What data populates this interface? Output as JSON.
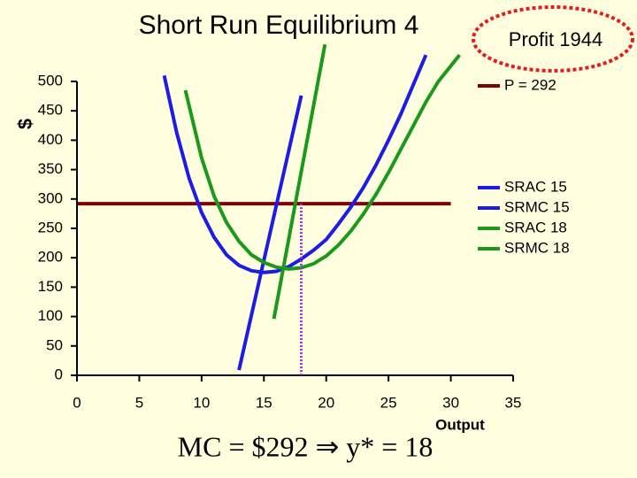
{
  "chart_data": {
    "type": "line",
    "title": "Short Run Equilibrium 4",
    "annotation": "Profit 1944",
    "footer": "MC = $292 ⇒ y* = 18",
    "x_label": "Output",
    "y_label": "$",
    "xlim": [
      0,
      35
    ],
    "xticks": [
      0,
      5,
      10,
      15,
      20,
      25,
      30,
      35
    ],
    "ylim": [
      0,
      500
    ],
    "yticks": [
      0,
      50,
      100,
      150,
      200,
      250,
      300,
      350,
      400,
      450,
      500
    ],
    "series": [
      {
        "name": "P = 292",
        "color": "#800000",
        "x": [
          0,
          30
        ],
        "values": [
          292,
          292
        ]
      },
      {
        "name": "SRAC 15",
        "color": "#1c1ce6",
        "x": [
          7,
          8,
          9,
          10,
          11,
          12,
          13,
          14,
          15,
          16,
          17,
          18,
          19,
          20,
          21,
          22,
          23,
          24,
          25,
          26,
          27,
          28
        ],
        "values": [
          510,
          413,
          335,
          277,
          235,
          205,
          187,
          178,
          175,
          177,
          185,
          198,
          213,
          231,
          258,
          287,
          320,
          358,
          400,
          445,
          495,
          545
        ]
      },
      {
        "name": "SRMC 15",
        "color": "#1c1ce6",
        "x": [
          13,
          18
        ],
        "values": [
          9,
          476
        ]
      },
      {
        "name": "SRAC 18",
        "color": "#1a991a",
        "x": [
          8.7,
          10,
          11,
          12,
          13,
          14,
          15,
          16,
          17,
          18,
          19,
          20,
          21,
          22,
          23,
          24,
          25,
          26,
          27,
          28,
          29,
          30.7
        ],
        "values": [
          485,
          370,
          305,
          260,
          228,
          205,
          192,
          184,
          181,
          183,
          190,
          203,
          222,
          246,
          275,
          308,
          345,
          385,
          425,
          465,
          500,
          545
        ]
      },
      {
        "name": "SRMC 18",
        "color": "#1a991a",
        "x": [
          15.8,
          19.9
        ],
        "values": [
          96,
          563
        ]
      }
    ],
    "dropline": {
      "x": 18,
      "y": 292,
      "color": "#9933cc"
    }
  }
}
